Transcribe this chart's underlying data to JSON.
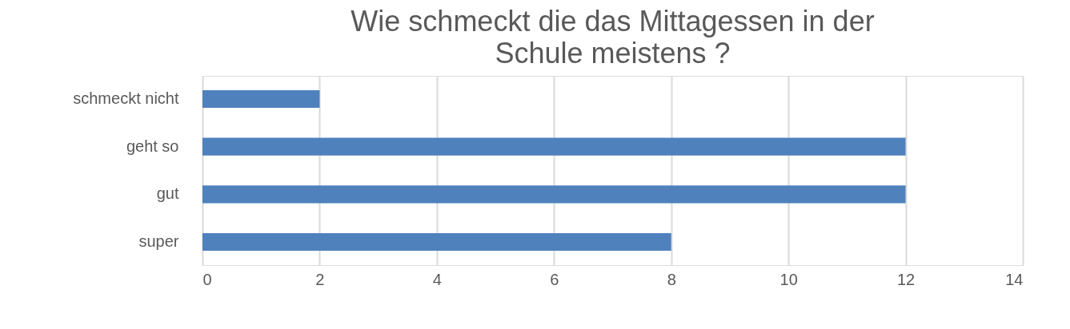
{
  "chart_data": {
    "type": "bar",
    "orientation": "horizontal",
    "title": "Wie schmeckt die das Mittagessen in der Schule meistens ?",
    "categories": [
      "schmeckt nicht",
      "geht so",
      "gut",
      "super"
    ],
    "values": [
      2,
      12,
      12,
      8
    ],
    "color": "#4f81bd",
    "xlim": [
      0,
      14
    ],
    "xticks": [
      0,
      2,
      4,
      6,
      8,
      10,
      12,
      14
    ],
    "grid": "x"
  }
}
